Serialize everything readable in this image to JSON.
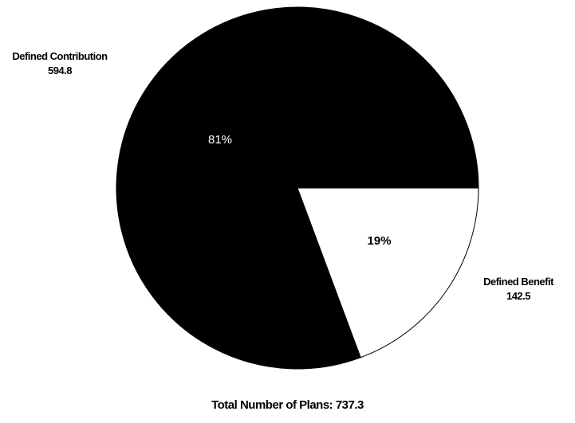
{
  "chart_data": {
    "type": "pie",
    "slices": [
      {
        "name": "Defined Contribution",
        "value": 594.8,
        "percent_label": "81%",
        "color": "#000000",
        "label_color": "#ffffff"
      },
      {
        "name": "Defined Benefit",
        "value": 142.5,
        "percent_label": "19%",
        "color": "#ffffff",
        "label_color": "#000000"
      }
    ],
    "title": "",
    "total": {
      "label": "Total Number of Plans:",
      "value": "737.3"
    }
  }
}
